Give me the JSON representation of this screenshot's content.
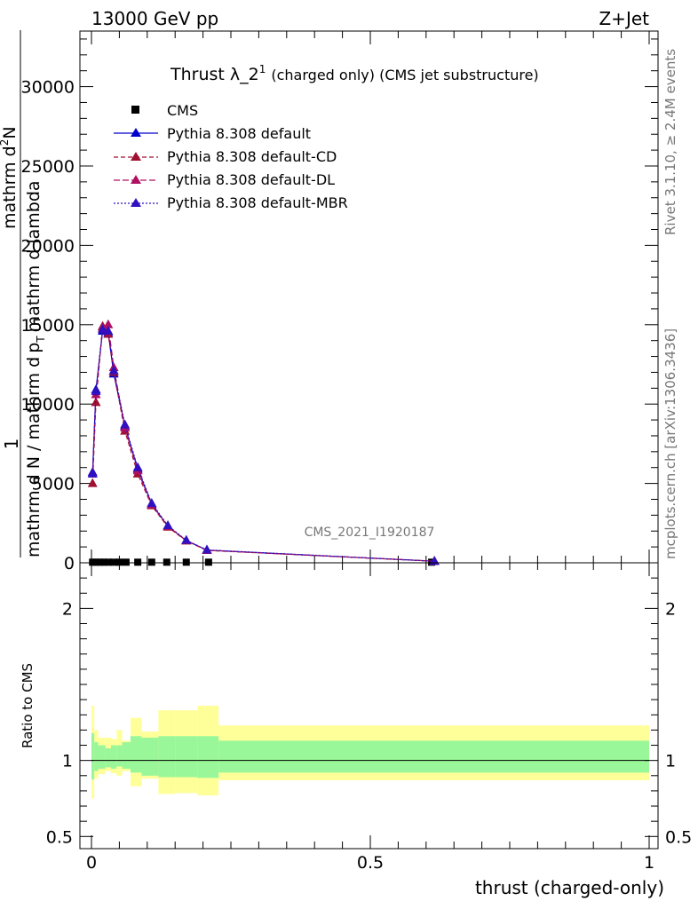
{
  "header": {
    "left": "13000 GeV pp",
    "right": "Z+Jet"
  },
  "side_labels": {
    "rivet": "Rivet 3.1.10, ≥ 2.4M events",
    "mcplots": "mcplots.cern.ch [arXiv:1306.3436]"
  },
  "chart_data": [
    {
      "type": "line",
      "title": "Thrust λ_2",
      "title_sup": "1",
      "title_suffix": "(charged only) (CMS jet substructure)",
      "watermark": "CMS_2021_I1920187",
      "ylabel_top": "1",
      "ylabel_numer": "mathrm d",
      "ylabel_sup": "2",
      "ylabel_numer_end": "N",
      "ylabel_denom": "mathrm d N / mathrm d",
      "ylabel_denom_p": "p",
      "ylabel_denom_sub": "T",
      "ylabel_denom_end": "mathrm d lambda",
      "xlim": [
        0,
        1
      ],
      "ylim": [
        0,
        33500
      ],
      "yticks": [
        0,
        5000,
        10000,
        15000,
        20000,
        25000,
        30000
      ],
      "ytick_labels": [
        "0",
        "5000",
        "10000",
        "15000",
        "20000",
        "25000",
        "30000"
      ],
      "legend_position": "top-left",
      "series": [
        {
          "name": "CMS",
          "color": "#000000",
          "marker": "square",
          "x": [
            0.002,
            0.008,
            0.015,
            0.022,
            0.03,
            0.04,
            0.05,
            0.062,
            0.083,
            0.108,
            0.135,
            0.17,
            0.21,
            0.61
          ],
          "y": [
            38,
            38,
            38,
            38,
            38,
            38,
            38,
            38,
            38,
            38,
            38,
            38,
            38,
            38
          ]
        },
        {
          "name": "Pythia 8.308 default",
          "color": "#0000cc",
          "marker": "triangle",
          "dash": "",
          "x": [
            0.002,
            0.008,
            0.02,
            0.03,
            0.04,
            0.06,
            0.083,
            0.108,
            0.137,
            0.17,
            0.207,
            0.615
          ],
          "y": [
            5700,
            10900,
            14600,
            14500,
            11900,
            8600,
            5900,
            3700,
            2300,
            1400,
            800,
            100
          ]
        },
        {
          "name": "Pythia 8.308 default-CD",
          "color": "#a01030",
          "marker": "triangle",
          "dash": "5,3",
          "x": [
            0.002,
            0.008,
            0.02,
            0.03,
            0.04,
            0.06,
            0.083,
            0.108,
            0.137,
            0.17,
            0.207,
            0.615
          ],
          "y": [
            5000,
            10100,
            14900,
            14400,
            12000,
            8300,
            5600,
            3600,
            2250,
            1380,
            780,
            100
          ]
        },
        {
          "name": "Pythia 8.308 default-DL",
          "color": "#b01060",
          "marker": "triangle",
          "dash": "7,3",
          "x": [
            0.002,
            0.008,
            0.02,
            0.03,
            0.04,
            0.06,
            0.083,
            0.108,
            0.137,
            0.17,
            0.207,
            0.615
          ],
          "y": [
            5600,
            10600,
            14800,
            15000,
            12300,
            8500,
            5800,
            3650,
            2300,
            1400,
            790,
            100
          ]
        },
        {
          "name": "Pythia 8.308 default-MBR",
          "color": "#3010c0",
          "marker": "triangle",
          "dash": "2,2",
          "x": [
            0.002,
            0.008,
            0.02,
            0.03,
            0.04,
            0.06,
            0.083,
            0.108,
            0.137,
            0.17,
            0.207,
            0.615
          ],
          "y": [
            5600,
            10800,
            14700,
            14600,
            12100,
            8700,
            6000,
            3750,
            2350,
            1420,
            810,
            100
          ]
        }
      ]
    },
    {
      "type": "area",
      "ylabel": "Ratio to CMS",
      "xlabel": "thrust (charged-only)",
      "xlim": [
        0,
        1
      ],
      "ylim": [
        0.42,
        2.3
      ],
      "yticks": [
        0.5,
        1,
        2
      ],
      "ytick_labels": [
        "0.5",
        "1",
        "2"
      ],
      "xticks": [
        0,
        0.5,
        1
      ],
      "xtick_labels": [
        "0",
        "0.5",
        "1"
      ],
      "bins": [
        0,
        0.005,
        0.012,
        0.025,
        0.035,
        0.045,
        0.055,
        0.07,
        0.09,
        0.12,
        0.15,
        0.19,
        0.228,
        1.0
      ],
      "band_inner": {
        "color": "#99f799",
        "lo": [
          0.875,
          0.93,
          0.945,
          0.955,
          0.945,
          0.96,
          0.945,
          0.92,
          0.9,
          0.89,
          0.89,
          0.885,
          0.92
        ],
        "hi": [
          1.18,
          1.12,
          1.1,
          1.08,
          1.1,
          1.1,
          1.12,
          1.16,
          1.15,
          1.16,
          1.16,
          1.16,
          1.13
        ]
      },
      "band_outer": {
        "color": "#ffff99",
        "lo": [
          0.75,
          0.88,
          0.91,
          0.93,
          0.915,
          0.9,
          0.93,
          0.83,
          0.88,
          0.78,
          0.785,
          0.77,
          0.87
        ],
        "hi": [
          1.36,
          1.2,
          1.15,
          1.15,
          1.14,
          1.2,
          1.13,
          1.28,
          1.19,
          1.33,
          1.33,
          1.36,
          1.23
        ]
      },
      "reference": 1.0
    }
  ]
}
